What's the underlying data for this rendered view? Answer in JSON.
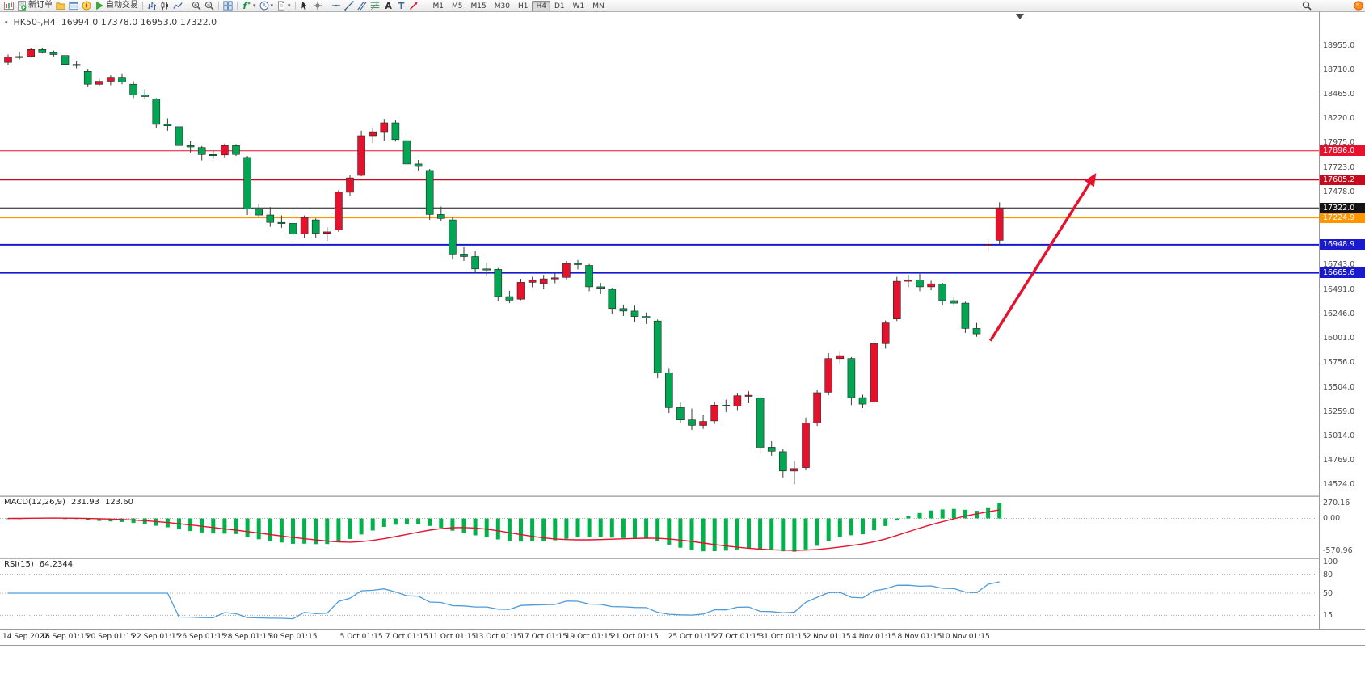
{
  "toolbar": {
    "new_order_label": "新订单",
    "autotrade_label": "自动交易",
    "timeframes": [
      "M1",
      "M5",
      "M15",
      "M30",
      "H1",
      "H4",
      "D1",
      "W1",
      "MN"
    ],
    "active_timeframe": "H4",
    "icon_groups": [
      [
        "bar-chart-icon",
        "candlestick-icon",
        "line-chart-icon"
      ],
      [
        "zoom-in-icon",
        "zoom-out-icon"
      ],
      [
        "tile-windows-icon"
      ],
      [
        "indicators-icon",
        "periods-icon",
        "templates-icon"
      ],
      [
        "cursor-icon",
        "crosshair-icon"
      ],
      [
        "horizontal-line-icon",
        "trendline-icon",
        "channel-icon",
        "fibonacci-icon",
        "text-icon",
        "label-icon",
        "arrows-icon"
      ]
    ],
    "right_icons": [
      "search-icon",
      "notification-icon"
    ]
  },
  "chart": {
    "symbol_title": "HK50-,H4",
    "ohlc_title": "16994.0 17378.0 16953.0 17322.0"
  },
  "indicators": {
    "macd": {
      "name": "MACD(12,26,9)",
      "main_value": "231.93",
      "signal_value": "123.60",
      "axis_labels": [
        "270.16",
        "0.00",
        "-570.96"
      ]
    },
    "rsi": {
      "name": "RSI(15)",
      "value": "64.2344",
      "axis_labels": [
        "100",
        "80",
        "50",
        "15"
      ],
      "levels": [
        80,
        50,
        15
      ]
    }
  },
  "chart_data": {
    "type": "candlestick",
    "symbol": "HK50-",
    "timeframe": "H4",
    "last_bar_ohlc": {
      "open": 16994.0,
      "high": 17378.0,
      "low": 16953.0,
      "close": 17322.0
    },
    "price_range": {
      "max": 19298,
      "min": 14419
    },
    "colors": {
      "up": "#e8112d",
      "down": "#00a651",
      "wick": "#3c3c3c",
      "candle_border": "#262626",
      "macd_hist": "#00b24a",
      "macd_signal": "#e8112d",
      "rsi": "#4f9bd9"
    },
    "y_labels": [
      "18955.0",
      "18710.0",
      "18465.0",
      "18220.0",
      "17975.0",
      "17723.0",
      "17478.0",
      "16743.0",
      "16491.0",
      "16246.0",
      "16001.0",
      "15756.0",
      "15504.0",
      "15259.0",
      "15014.0",
      "14769.0",
      "14524.0"
    ],
    "levels": [
      {
        "label": "17896.0",
        "price": 17896.0,
        "color": "#e8112d",
        "width": 1
      },
      {
        "label": "17605.2",
        "price": 17605.2,
        "color": "#c60b1e",
        "width": 1.4
      },
      {
        "label": "17322.0",
        "price": 17322.0,
        "color": "#141414",
        "width": 1
      },
      {
        "label": "17224.9",
        "price": 17224.9,
        "color": "#ff9500",
        "width": 2
      },
      {
        "label": "16948.9",
        "price": 16948.9,
        "color": "#1919cd",
        "width": 2
      },
      {
        "label": "16665.6",
        "price": 16665.6,
        "color": "#1919cd",
        "width": 2
      }
    ],
    "x_labels": [
      {
        "text": "14 Sep 2022",
        "bar": 0
      },
      {
        "text": "16 Sep 01:15",
        "bar": 5
      },
      {
        "text": "20 Sep 01:15",
        "bar": 9
      },
      {
        "text": "22 Sep 01:15",
        "bar": 13
      },
      {
        "text": "26 Sep 01:15",
        "bar": 17
      },
      {
        "text": "28 Sep 01:15",
        "bar": 21
      },
      {
        "text": "30 Sep 01:15",
        "bar": 25
      },
      {
        "text": "5 Oct 01:15",
        "bar": 31
      },
      {
        "text": "7 Oct 01:15",
        "bar": 35
      },
      {
        "text": "11 Oct 01:15",
        "bar": 39
      },
      {
        "text": "13 Oct 01:15",
        "bar": 43
      },
      {
        "text": "17 Oct 01:15",
        "bar": 47
      },
      {
        "text": "19 Oct 01:15",
        "bar": 51
      },
      {
        "text": "21 Oct 01:15",
        "bar": 55
      },
      {
        "text": "25 Oct 01:15",
        "bar": 60
      },
      {
        "text": "27 Oct 01:15",
        "bar": 64
      },
      {
        "text": "31 Oct 01:15",
        "bar": 68
      },
      {
        "text": "2 Nov 01:15",
        "bar": 72
      },
      {
        "text": "4 Nov 01:15",
        "bar": 76
      },
      {
        "text": "8 Nov 01:15",
        "bar": 80
      },
      {
        "text": "10 Nov 01:15",
        "bar": 84
      }
    ],
    "candles": [
      [
        18790,
        18870,
        18760,
        18845
      ],
      [
        18845,
        18900,
        18820,
        18850
      ],
      [
        18850,
        18935,
        18840,
        18920
      ],
      [
        18920,
        18940,
        18880,
        18895
      ],
      [
        18895,
        18910,
        18850,
        18870
      ],
      [
        18860,
        18875,
        18740,
        18770
      ],
      [
        18770,
        18800,
        18730,
        18760
      ],
      [
        18700,
        18720,
        18540,
        18570
      ],
      [
        18570,
        18625,
        18545,
        18600
      ],
      [
        18600,
        18660,
        18560,
        18640
      ],
      [
        18640,
        18680,
        18570,
        18590
      ],
      [
        18570,
        18600,
        18430,
        18460
      ],
      [
        18460,
        18520,
        18420,
        18445
      ],
      [
        18420,
        18430,
        18130,
        18165
      ],
      [
        18165,
        18225,
        18100,
        18150
      ],
      [
        18140,
        18165,
        17920,
        17950
      ],
      [
        17950,
        17995,
        17880,
        17935
      ],
      [
        17930,
        17945,
        17800,
        17860
      ],
      [
        17860,
        17905,
        17815,
        17855
      ],
      [
        17855,
        17970,
        17830,
        17950
      ],
      [
        17950,
        17965,
        17845,
        17860
      ],
      [
        17830,
        17845,
        17250,
        17310
      ],
      [
        17310,
        17365,
        17225,
        17250
      ],
      [
        17250,
        17330,
        17130,
        17175
      ],
      [
        17175,
        17245,
        17120,
        17165
      ],
      [
        17165,
        17285,
        16960,
        17060
      ],
      [
        17060,
        17245,
        17020,
        17225
      ],
      [
        17200,
        17215,
        17020,
        17065
      ],
      [
        17065,
        17125,
        16990,
        17080
      ],
      [
        17100,
        17500,
        17080,
        17480
      ],
      [
        17480,
        17655,
        17445,
        17625
      ],
      [
        17650,
        18100,
        17640,
        18050
      ],
      [
        18050,
        18125,
        17975,
        18090
      ],
      [
        18090,
        18220,
        18000,
        18180
      ],
      [
        18180,
        18205,
        17990,
        18010
      ],
      [
        18000,
        18055,
        17720,
        17765
      ],
      [
        17765,
        17805,
        17700,
        17740
      ],
      [
        17700,
        17715,
        17200,
        17255
      ],
      [
        17255,
        17335,
        17185,
        17215
      ],
      [
        17200,
        17225,
        16800,
        16855
      ],
      [
        16855,
        16925,
        16785,
        16830
      ],
      [
        16830,
        16885,
        16660,
        16705
      ],
      [
        16705,
        16765,
        16640,
        16700
      ],
      [
        16700,
        16715,
        16380,
        16425
      ],
      [
        16425,
        16485,
        16360,
        16390
      ],
      [
        16400,
        16605,
        16390,
        16570
      ],
      [
        16570,
        16625,
        16520,
        16590
      ],
      [
        16560,
        16645,
        16500,
        16605
      ],
      [
        16605,
        16660,
        16560,
        16615
      ],
      [
        16620,
        16785,
        16600,
        16760
      ],
      [
        16760,
        16795,
        16700,
        16750
      ],
      [
        16740,
        16755,
        16480,
        16525
      ],
      [
        16525,
        16565,
        16450,
        16510
      ],
      [
        16500,
        16515,
        16250,
        16305
      ],
      [
        16305,
        16345,
        16230,
        16280
      ],
      [
        16280,
        16335,
        16170,
        16225
      ],
      [
        16225,
        16265,
        16150,
        16210
      ],
      [
        16180,
        16195,
        15600,
        15655
      ],
      [
        15655,
        15705,
        15250,
        15305
      ],
      [
        15305,
        15355,
        15150,
        15180
      ],
      [
        15180,
        15295,
        15080,
        15125
      ],
      [
        15125,
        15235,
        15090,
        15165
      ],
      [
        15170,
        15365,
        15140,
        15330
      ],
      [
        15330,
        15385,
        15260,
        15320
      ],
      [
        15320,
        15455,
        15280,
        15425
      ],
      [
        15425,
        15470,
        15350,
        15430
      ],
      [
        15400,
        15415,
        14850,
        14905
      ],
      [
        14905,
        14965,
        14820,
        14865
      ],
      [
        14860,
        14885,
        14600,
        14665
      ],
      [
        14665,
        14765,
        14530,
        14690
      ],
      [
        14700,
        15205,
        14680,
        15150
      ],
      [
        15150,
        15485,
        15120,
        15455
      ],
      [
        15460,
        15855,
        15430,
        15800
      ],
      [
        15800,
        15875,
        15740,
        15830
      ],
      [
        15800,
        15815,
        15330,
        15405
      ],
      [
        15405,
        15435,
        15300,
        15340
      ],
      [
        15360,
        16005,
        15350,
        15950
      ],
      [
        15950,
        16185,
        15900,
        16160
      ],
      [
        16200,
        16625,
        16180,
        16580
      ],
      [
        16580,
        16645,
        16520,
        16595
      ],
      [
        16595,
        16655,
        16480,
        16525
      ],
      [
        16525,
        16585,
        16490,
        16555
      ],
      [
        16550,
        16565,
        16340,
        16385
      ],
      [
        16385,
        16425,
        16330,
        16360
      ],
      [
        16360,
        16375,
        16060,
        16105
      ],
      [
        16105,
        16160,
        16020,
        16050
      ],
      [
        16940,
        17005,
        16880,
        16950
      ],
      [
        16994,
        17378,
        16953,
        17322
      ]
    ],
    "arrow": {
      "from": {
        "bar": 86.2,
        "price": 15980
      },
      "to": {
        "bar": 95.3,
        "price": 17640
      },
      "color": "#e8112d"
    },
    "macd_params": [
      12,
      26,
      9
    ],
    "rsi_period": 15
  }
}
